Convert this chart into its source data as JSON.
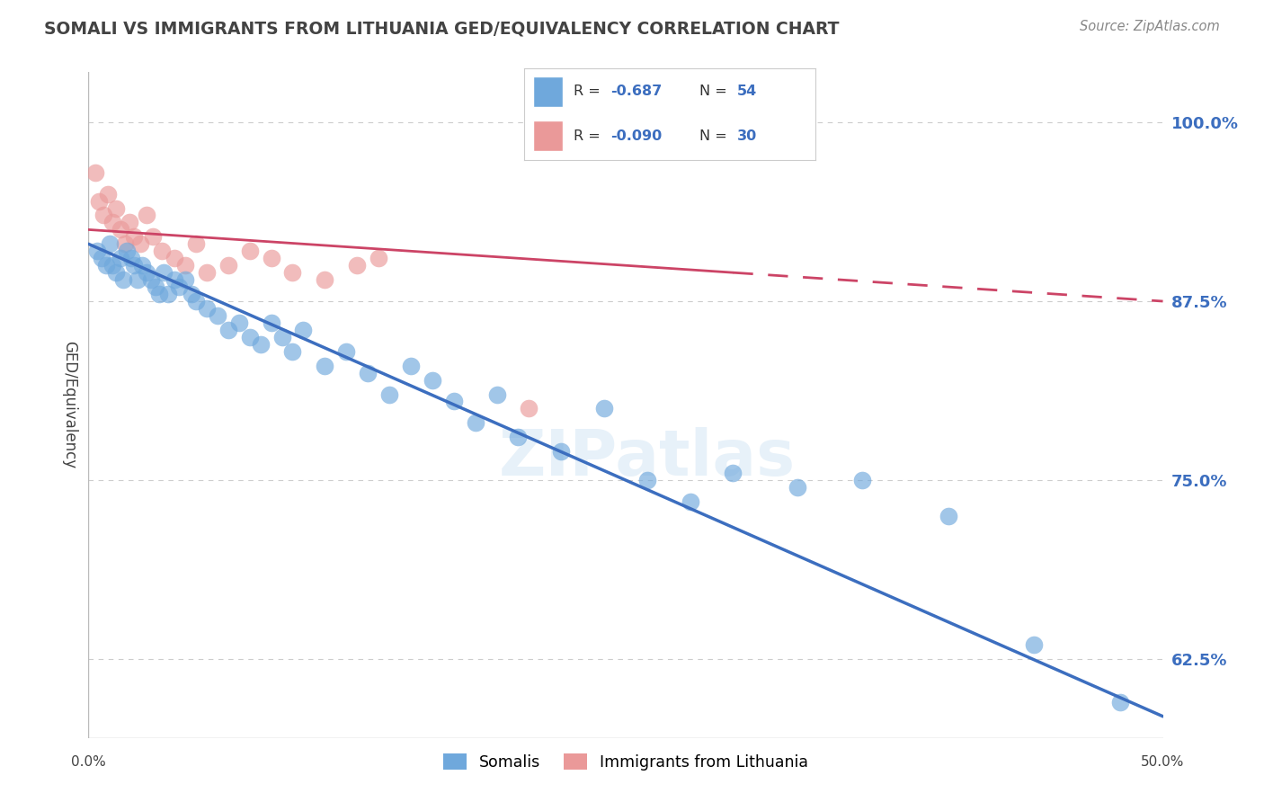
{
  "title": "SOMALI VS IMMIGRANTS FROM LITHUANIA GED/EQUIVALENCY CORRELATION CHART",
  "source": "Source: ZipAtlas.com",
  "ylabel": "GED/Equivalency",
  "yticks": [
    62.5,
    75.0,
    87.5,
    100.0
  ],
  "ytick_labels": [
    "62.5%",
    "75.0%",
    "87.5%",
    "100.0%"
  ],
  "xlim": [
    0.0,
    50.0
  ],
  "ylim": [
    57.0,
    103.5
  ],
  "legend_label1": "Somalis",
  "legend_label2": "Immigrants from Lithuania",
  "blue_color": "#6fa8dc",
  "pink_color": "#ea9999",
  "blue_line_color": "#3c6ebf",
  "pink_line_color": "#cc4466",
  "title_color": "#434343",
  "source_color": "#888888",
  "r_value_color": "#3c6ebf",
  "grid_color": "#cccccc",
  "background_color": "#ffffff",
  "somali_x": [
    0.4,
    0.6,
    0.8,
    1.0,
    1.1,
    1.3,
    1.5,
    1.6,
    1.8,
    2.0,
    2.1,
    2.3,
    2.5,
    2.7,
    2.9,
    3.1,
    3.3,
    3.5,
    3.7,
    4.0,
    4.2,
    4.5,
    4.8,
    5.0,
    5.5,
    6.0,
    6.5,
    7.0,
    7.5,
    8.0,
    8.5,
    9.0,
    9.5,
    10.0,
    11.0,
    12.0,
    13.0,
    14.0,
    15.0,
    16.0,
    17.0,
    18.0,
    19.0,
    20.0,
    22.0,
    24.0,
    26.0,
    28.0,
    30.0,
    33.0,
    36.0,
    40.0,
    44.0,
    48.0
  ],
  "somali_y": [
    91.0,
    90.5,
    90.0,
    91.5,
    90.0,
    89.5,
    90.5,
    89.0,
    91.0,
    90.5,
    90.0,
    89.0,
    90.0,
    89.5,
    89.0,
    88.5,
    88.0,
    89.5,
    88.0,
    89.0,
    88.5,
    89.0,
    88.0,
    87.5,
    87.0,
    86.5,
    85.5,
    86.0,
    85.0,
    84.5,
    86.0,
    85.0,
    84.0,
    85.5,
    83.0,
    84.0,
    82.5,
    81.0,
    83.0,
    82.0,
    80.5,
    79.0,
    81.0,
    78.0,
    77.0,
    80.0,
    75.0,
    73.5,
    75.5,
    74.5,
    75.0,
    72.5,
    63.5,
    59.5
  ],
  "lithuania_x": [
    0.3,
    0.5,
    0.7,
    0.9,
    1.1,
    1.3,
    1.5,
    1.7,
    1.9,
    2.1,
    2.4,
    2.7,
    3.0,
    3.4,
    4.0,
    4.5,
    5.0,
    5.5,
    6.5,
    7.5,
    8.5,
    9.5,
    11.0,
    12.5,
    13.5,
    20.5
  ],
  "lithuania_y": [
    96.5,
    94.5,
    93.5,
    95.0,
    93.0,
    94.0,
    92.5,
    91.5,
    93.0,
    92.0,
    91.5,
    93.5,
    92.0,
    91.0,
    90.5,
    90.0,
    91.5,
    89.5,
    90.0,
    91.0,
    90.5,
    89.5,
    89.0,
    90.0,
    90.5,
    80.0
  ],
  "blue_line_x0": 0.0,
  "blue_line_y0": 91.5,
  "blue_line_x1": 50.0,
  "blue_line_y1": 58.5,
  "pink_line_x0": 0.0,
  "pink_line_y0": 92.5,
  "pink_line_x1": 50.0,
  "pink_line_y1": 87.5
}
